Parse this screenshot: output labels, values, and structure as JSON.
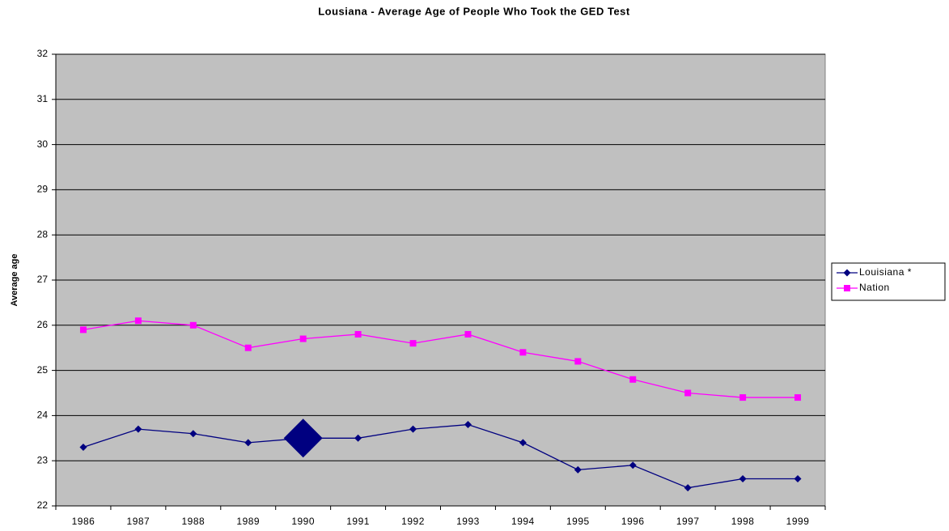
{
  "chart_data": {
    "type": "line",
    "title": "Lousiana - Average Age of People Who Took the GED Test",
    "y_label": "Average age",
    "categories": [
      "1986",
      "1987",
      "1988",
      "1989",
      "1990",
      "1991",
      "1992",
      "1993",
      "1994",
      "1995",
      "1996",
      "1997",
      "1998",
      "1999"
    ],
    "series": [
      {
        "name": "Louisiana *",
        "color": "#000080",
        "marker": "diamond",
        "highlight": 4,
        "values": [
          23.3,
          23.7,
          23.6,
          23.4,
          23.5,
          23.5,
          23.7,
          23.8,
          23.4,
          22.8,
          22.9,
          22.4,
          22.6,
          22.6
        ]
      },
      {
        "name": "Nation",
        "color": "#ff00ff",
        "marker": "square",
        "values": [
          25.9,
          26.1,
          26.0,
          25.5,
          25.7,
          25.8,
          25.6,
          25.8,
          25.4,
          25.2,
          24.8,
          24.5,
          24.4,
          24.4
        ]
      }
    ],
    "ylim": [
      22,
      32
    ],
    "yticks": [
      22,
      23,
      24,
      25,
      26,
      27,
      28,
      29,
      30,
      31,
      32
    ],
    "grid": true,
    "legend": "right",
    "plot_background": "#c0c0c0"
  }
}
